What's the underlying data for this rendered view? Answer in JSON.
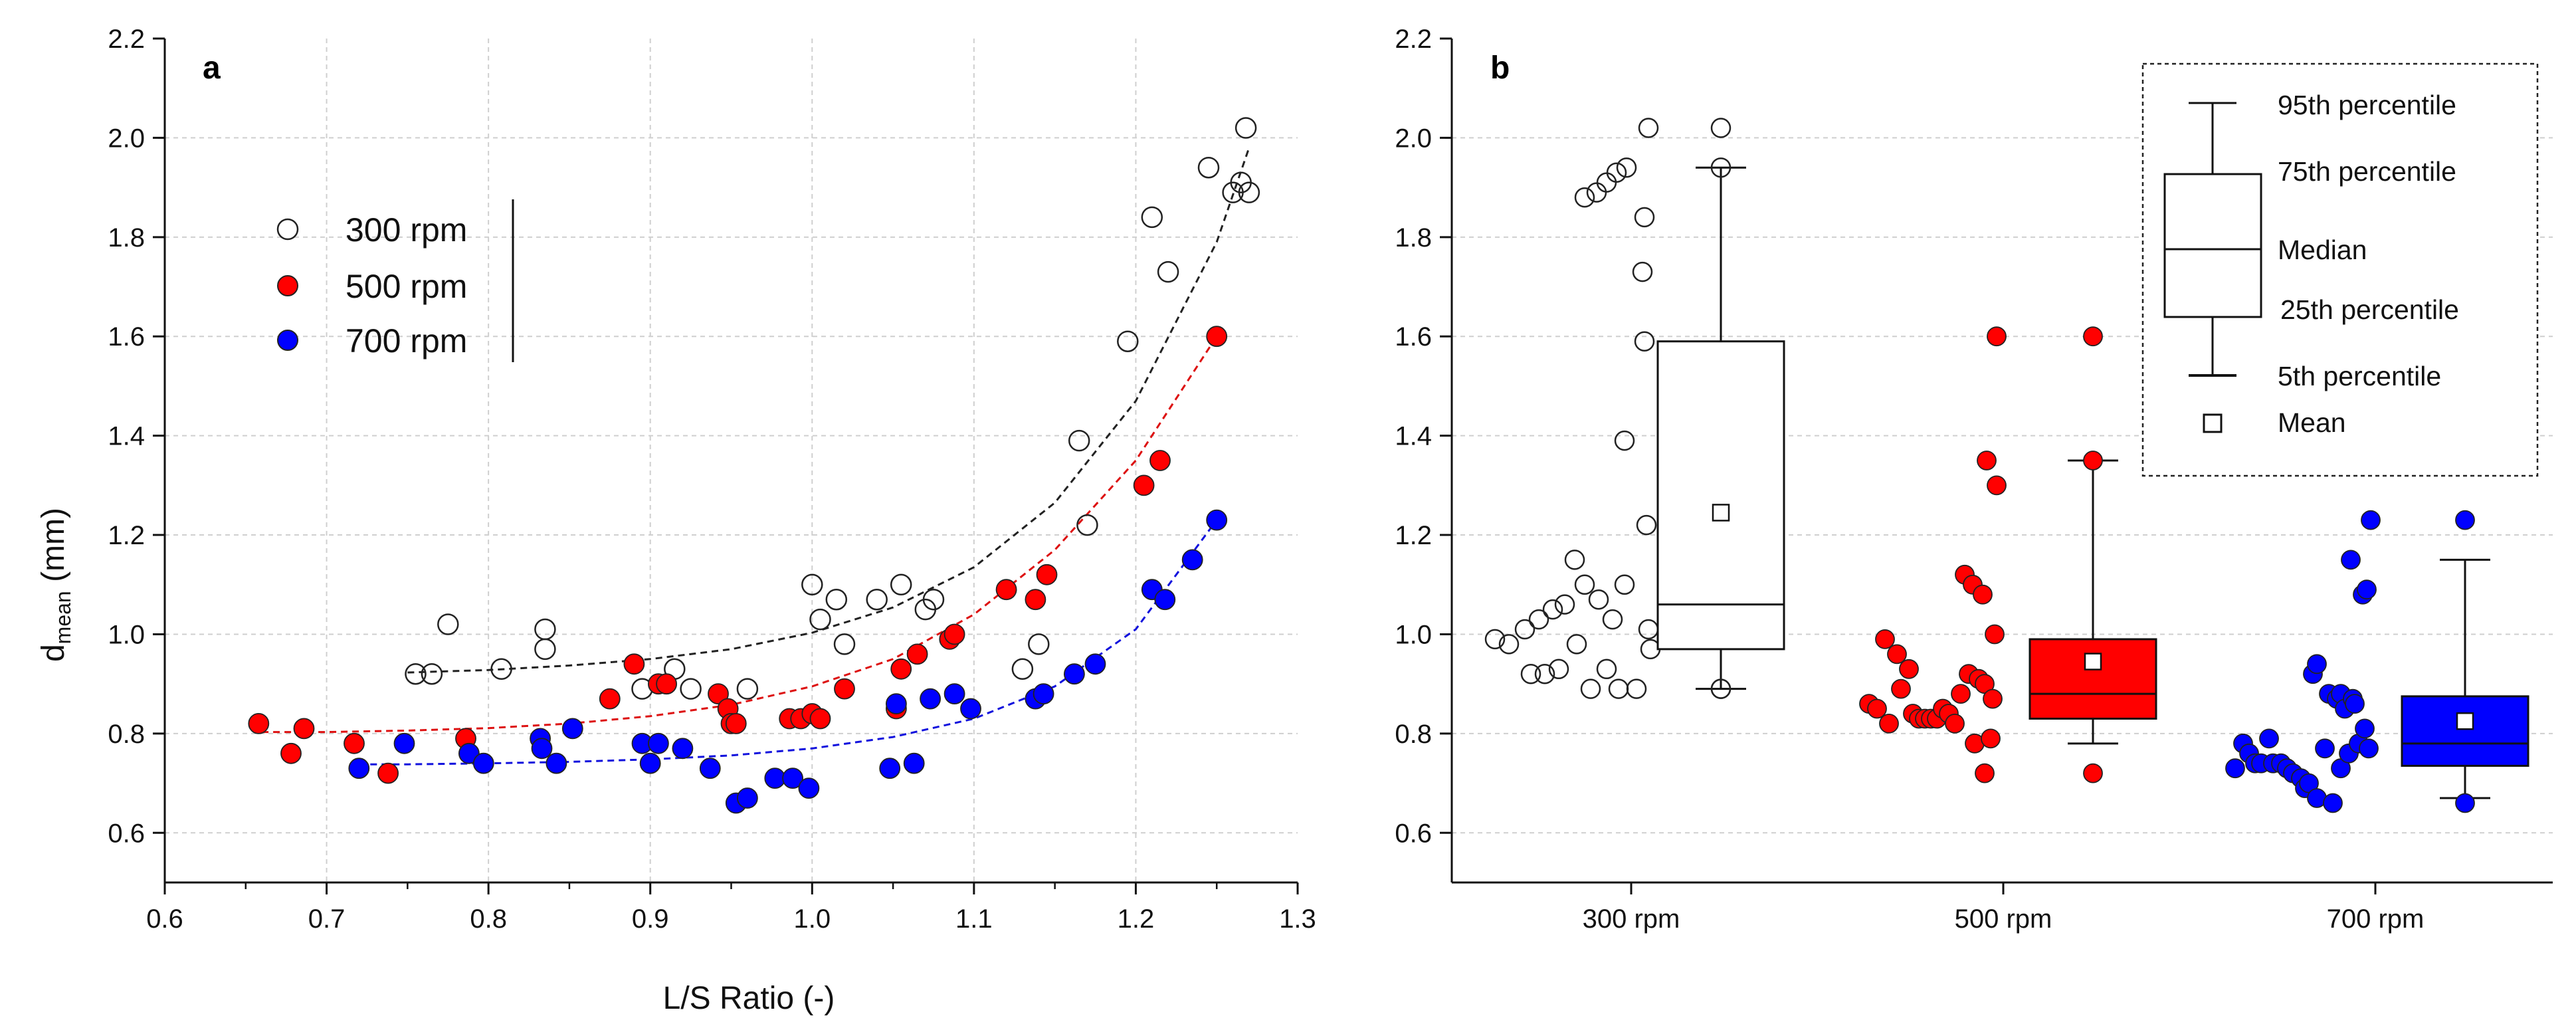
{
  "chart_data": [
    {
      "panel_label": "a",
      "type": "scatter",
      "xlabel": "L/S Ratio (-)",
      "ylabel_main": "d",
      "ylabel_sub": "mean",
      "ylabel_unit": " (mm)",
      "xlim": [
        0.6,
        1.3
      ],
      "ylim": [
        0.5,
        2.2
      ],
      "xticks": [
        "0.6",
        "0.7",
        "0.8",
        "0.9",
        "1.0",
        "1.1",
        "1.2",
        "1.3"
      ],
      "yticks": [
        "0.6",
        "0.8",
        "1.0",
        "1.2",
        "1.4",
        "1.6",
        "1.8",
        "2.0",
        "2.2"
      ],
      "grid": true,
      "legend": [
        "300 rpm",
        "500 rpm",
        "700 rpm"
      ],
      "series": [
        {
          "name": "300 rpm",
          "fill": "none",
          "points": [
            [
              0.755,
              0.92
            ],
            [
              0.765,
              0.92
            ],
            [
              0.775,
              1.02
            ],
            [
              0.808,
              0.93
            ],
            [
              0.835,
              1.01
            ],
            [
              0.835,
              0.97
            ],
            [
              0.895,
              0.89
            ],
            [
              0.915,
              0.93
            ],
            [
              0.925,
              0.89
            ],
            [
              0.96,
              0.89
            ],
            [
              1.0,
              1.1
            ],
            [
              1.005,
              1.03
            ],
            [
              1.015,
              1.07
            ],
            [
              1.02,
              0.98
            ],
            [
              1.04,
              1.07
            ],
            [
              1.055,
              1.1
            ],
            [
              1.07,
              1.05
            ],
            [
              1.075,
              1.07
            ],
            [
              1.13,
              0.93
            ],
            [
              1.14,
              0.98
            ],
            [
              1.165,
              1.39
            ],
            [
              1.17,
              1.22
            ],
            [
              1.195,
              1.59
            ],
            [
              1.21,
              1.84
            ],
            [
              1.22,
              1.73
            ],
            [
              1.245,
              1.94
            ],
            [
              1.26,
              1.89
            ],
            [
              1.265,
              1.91
            ],
            [
              1.268,
              2.02
            ],
            [
              1.27,
              1.89
            ]
          ],
          "fit": [
            [
              0.75,
              0.923
            ],
            [
              0.8,
              0.928
            ],
            [
              0.85,
              0.937
            ],
            [
              0.9,
              0.95
            ],
            [
              0.95,
              0.97
            ],
            [
              1.0,
              1.003
            ],
            [
              1.05,
              1.054
            ],
            [
              1.1,
              1.135
            ],
            [
              1.15,
              1.265
            ],
            [
              1.2,
              1.47
            ],
            [
              1.25,
              1.79
            ],
            [
              1.27,
              1.98
            ]
          ]
        },
        {
          "name": "500 rpm",
          "fill": "#ff0000",
          "points": [
            [
              0.658,
              0.82
            ],
            [
              0.678,
              0.76
            ],
            [
              0.686,
              0.81
            ],
            [
              0.717,
              0.78
            ],
            [
              0.738,
              0.72
            ],
            [
              0.786,
              0.79
            ],
            [
              0.875,
              0.87
            ],
            [
              0.89,
              0.94
            ],
            [
              0.905,
              0.9
            ],
            [
              0.91,
              0.9
            ],
            [
              0.942,
              0.88
            ],
            [
              0.948,
              0.85
            ],
            [
              0.95,
              0.82
            ],
            [
              0.953,
              0.82
            ],
            [
              0.986,
              0.83
            ],
            [
              0.993,
              0.83
            ],
            [
              1.0,
              0.84
            ],
            [
              1.005,
              0.83
            ],
            [
              1.02,
              0.89
            ],
            [
              1.052,
              0.85
            ],
            [
              1.055,
              0.93
            ],
            [
              1.065,
              0.96
            ],
            [
              1.085,
              0.99
            ],
            [
              1.088,
              1.0
            ],
            [
              1.12,
              1.09
            ],
            [
              1.138,
              1.07
            ],
            [
              1.145,
              1.12
            ],
            [
              1.205,
              1.3
            ],
            [
              1.215,
              1.35
            ],
            [
              1.25,
              1.6
            ]
          ],
          "fit": [
            [
              0.66,
              0.803
            ],
            [
              0.7,
              0.803
            ],
            [
              0.75,
              0.806
            ],
            [
              0.8,
              0.811
            ],
            [
              0.85,
              0.82
            ],
            [
              0.9,
              0.835
            ],
            [
              0.95,
              0.858
            ],
            [
              1.0,
              0.895
            ],
            [
              1.05,
              0.95
            ],
            [
              1.1,
              1.04
            ],
            [
              1.15,
              1.17
            ],
            [
              1.2,
              1.35
            ],
            [
              1.25,
              1.6
            ]
          ]
        },
        {
          "name": "700 rpm",
          "fill": "#0000ff",
          "points": [
            [
              0.72,
              0.73
            ],
            [
              0.748,
              0.78
            ],
            [
              0.788,
              0.76
            ],
            [
              0.797,
              0.74
            ],
            [
              0.832,
              0.79
            ],
            [
              0.833,
              0.77
            ],
            [
              0.842,
              0.74
            ],
            [
              0.852,
              0.81
            ],
            [
              0.895,
              0.78
            ],
            [
              0.9,
              0.74
            ],
            [
              0.905,
              0.78
            ],
            [
              0.92,
              0.77
            ],
            [
              0.937,
              0.73
            ],
            [
              0.953,
              0.66
            ],
            [
              0.96,
              0.67
            ],
            [
              0.977,
              0.71
            ],
            [
              0.988,
              0.71
            ],
            [
              0.998,
              0.69
            ],
            [
              1.048,
              0.73
            ],
            [
              1.052,
              0.86
            ],
            [
              1.063,
              0.74
            ],
            [
              1.073,
              0.87
            ],
            [
              1.088,
              0.88
            ],
            [
              1.098,
              0.85
            ],
            [
              1.138,
              0.87
            ],
            [
              1.143,
              0.88
            ],
            [
              1.162,
              0.92
            ],
            [
              1.175,
              0.94
            ],
            [
              1.21,
              1.09
            ],
            [
              1.218,
              1.07
            ],
            [
              1.235,
              1.15
            ],
            [
              1.25,
              1.23
            ]
          ],
          "fit": [
            [
              0.72,
              0.738
            ],
            [
              0.75,
              0.738
            ],
            [
              0.8,
              0.74
            ],
            [
              0.85,
              0.743
            ],
            [
              0.9,
              0.748
            ],
            [
              0.95,
              0.756
            ],
            [
              1.0,
              0.77
            ],
            [
              1.05,
              0.793
            ],
            [
              1.1,
              0.83
            ],
            [
              1.15,
              0.895
            ],
            [
              1.2,
              1.01
            ],
            [
              1.25,
              1.23
            ]
          ]
        }
      ]
    },
    {
      "panel_label": "b",
      "type": "box+scatter",
      "ylim": [
        0.5,
        2.2
      ],
      "yticks": [
        "0.6",
        "0.8",
        "1.0",
        "1.2",
        "1.4",
        "1.6",
        "1.8",
        "2.0",
        "2.2"
      ],
      "categories": [
        "300 rpm",
        "500 rpm",
        "700 rpm"
      ],
      "grid": true,
      "legend": {
        "p95": "95th percentile",
        "p75": "75th percentile",
        "median": "Median",
        "p25": "25th percentile",
        "p5": "5th percentile",
        "mean": "Mean"
      },
      "groups": [
        {
          "name": "300 rpm",
          "fill": "none",
          "box_fill": "none",
          "p5": 0.89,
          "q1": 0.97,
          "median": 1.06,
          "q3": 1.59,
          "p95": 1.94,
          "mean": 1.245,
          "outliers": [
            0.89,
            0.89,
            1.94,
            2.02
          ],
          "jitter_points": [
            [
              0.5,
              0.99
            ],
            [
              1.2,
              0.98
            ],
            [
              2.0,
              1.01
            ],
            [
              2.3,
              0.92
            ],
            [
              2.7,
              1.03
            ],
            [
              3.0,
              0.92
            ],
            [
              3.4,
              1.05
            ],
            [
              3.7,
              0.93
            ],
            [
              4.0,
              1.06
            ],
            [
              4.5,
              1.15
            ],
            [
              4.6,
              0.98
            ],
            [
              5.0,
              1.88
            ],
            [
              5.0,
              1.1
            ],
            [
              5.3,
              0.89
            ],
            [
              5.6,
              1.89
            ],
            [
              5.7,
              1.07
            ],
            [
              6.1,
              1.91
            ],
            [
              6.1,
              0.93
            ],
            [
              6.4,
              1.03
            ],
            [
              6.6,
              1.93
            ],
            [
              6.7,
              0.89
            ],
            [
              7.0,
              1.39
            ],
            [
              7.0,
              1.1
            ],
            [
              7.1,
              1.94
            ],
            [
              7.6,
              0.89
            ],
            [
              7.9,
              1.73
            ],
            [
              8.0,
              1.84
            ],
            [
              8.1,
              1.22
            ],
            [
              8.2,
              1.01
            ],
            [
              8.3,
              0.97
            ],
            [
              8.2,
              2.02
            ],
            [
              8.0,
              1.59
            ]
          ]
        },
        {
          "name": "500 rpm",
          "fill": "#ff0000",
          "box_fill": "#ff0000",
          "p5": 0.78,
          "q1": 0.83,
          "median": 0.88,
          "q3": 0.99,
          "p95": 1.35,
          "mean": 0.945,
          "outliers": [
            0.72,
            1.35,
            1.6
          ],
          "jitter_points": [
            [
              0.6,
              0.86
            ],
            [
              1.0,
              0.85
            ],
            [
              1.4,
              0.99
            ],
            [
              1.6,
              0.82
            ],
            [
              2.0,
              0.96
            ],
            [
              2.2,
              0.89
            ],
            [
              2.6,
              0.93
            ],
            [
              2.8,
              0.84
            ],
            [
              3.1,
              0.83
            ],
            [
              3.4,
              0.83
            ],
            [
              3.7,
              0.83
            ],
            [
              4.0,
              0.83
            ],
            [
              4.3,
              0.85
            ],
            [
              4.6,
              0.84
            ],
            [
              4.9,
              0.82
            ],
            [
              5.2,
              0.88
            ],
            [
              5.4,
              1.12
            ],
            [
              5.6,
              0.92
            ],
            [
              5.8,
              1.1
            ],
            [
              5.9,
              0.78
            ],
            [
              6.1,
              0.91
            ],
            [
              6.3,
              1.08
            ],
            [
              6.4,
              0.72
            ],
            [
              6.4,
              0.9
            ],
            [
              6.5,
              1.35
            ],
            [
              6.7,
              0.79
            ],
            [
              6.8,
              0.87
            ],
            [
              6.9,
              1.0
            ],
            [
              7.0,
              1.6
            ],
            [
              7.0,
              1.3
            ]
          ]
        },
        {
          "name": "700 rpm",
          "fill": "#0000ff",
          "box_fill": "#0000ff",
          "p5": 0.67,
          "q1": 0.735,
          "median": 0.78,
          "q3": 0.875,
          "p95": 1.15,
          "mean": 0.825,
          "outliers": [
            0.66,
            1.23
          ],
          "jitter_points": [
            [
              0.3,
              0.73
            ],
            [
              0.7,
              0.78
            ],
            [
              1.0,
              0.76
            ],
            [
              1.3,
              0.74
            ],
            [
              1.6,
              0.74
            ],
            [
              2.0,
              0.79
            ],
            [
              2.2,
              0.74
            ],
            [
              2.6,
              0.74
            ],
            [
              2.9,
              0.73
            ],
            [
              3.2,
              0.72
            ],
            [
              3.6,
              0.71
            ],
            [
              3.8,
              0.69
            ],
            [
              4.0,
              0.7
            ],
            [
              4.2,
              0.92
            ],
            [
              4.4,
              0.94
            ],
            [
              4.4,
              0.67
            ],
            [
              4.8,
              0.77
            ],
            [
              5.0,
              0.88
            ],
            [
              5.2,
              0.66
            ],
            [
              5.4,
              0.87
            ],
            [
              5.6,
              0.88
            ],
            [
              5.6,
              0.73
            ],
            [
              5.8,
              0.85
            ],
            [
              6.0,
              0.76
            ],
            [
              6.1,
              1.15
            ],
            [
              6.2,
              0.87
            ],
            [
              6.3,
              0.86
            ],
            [
              6.5,
              0.78
            ],
            [
              6.7,
              1.08
            ],
            [
              6.8,
              0.81
            ],
            [
              6.9,
              1.09
            ],
            [
              7.0,
              0.77
            ],
            [
              7.1,
              1.23
            ]
          ]
        }
      ]
    }
  ]
}
